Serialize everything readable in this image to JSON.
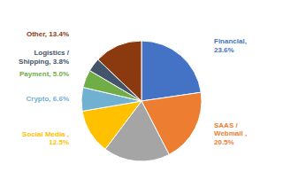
{
  "chart_data": {
    "type": "pie",
    "categories": [
      "Financial,\n23.6%",
      "SAAS /\nWebmail ,\n20.5%",
      null,
      "Social Media ,\n12.5%",
      "Crypto, 6.6%",
      "Payment, 5.0%",
      "Logistics /\nShipping, 3.8%",
      "Other, 13.4%"
    ],
    "values": [
      23.6,
      20.5,
      18.6,
      12.5,
      6.6,
      5.0,
      3.8,
      13.4
    ],
    "colors": [
      "#4472C4",
      "#ED7D31",
      "#A5A5A5",
      "#FFC000",
      "#70B0D0",
      "#70AD47",
      "#44546A",
      "#8B3A0F"
    ]
  }
}
